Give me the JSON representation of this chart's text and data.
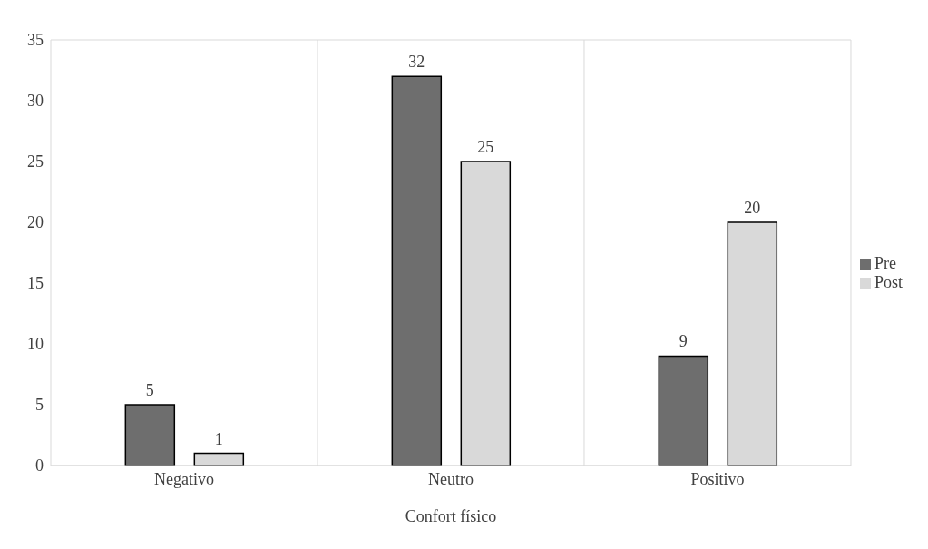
{
  "chart_data": {
    "type": "bar",
    "xlabel": "Confort físico",
    "categories": [
      "Negativo",
      "Neutro",
      "Positivo"
    ],
    "series": [
      {
        "name": "Pre",
        "color": "#6e6e6e",
        "values": [
          5,
          32,
          9
        ]
      },
      {
        "name": "Post",
        "color": "#d9d9d9",
        "values": [
          1,
          25,
          20
        ]
      }
    ],
    "ylim": [
      0,
      35
    ],
    "yticks": [
      0,
      5,
      10,
      15,
      20,
      25,
      30,
      35
    ],
    "grid": true,
    "legend": "right",
    "data_labels": true
  }
}
